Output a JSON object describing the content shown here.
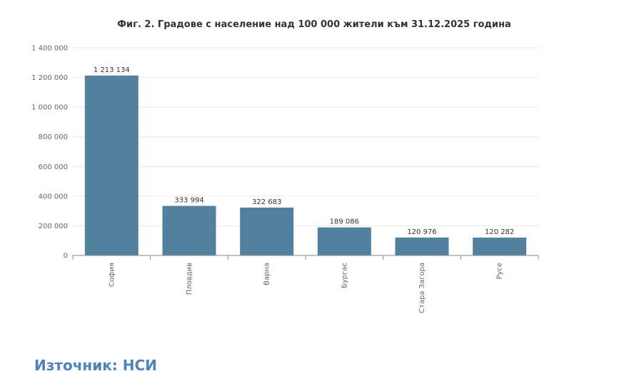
{
  "chart_data": {
    "type": "bar",
    "title": "Фиг. 2. Градове с население над 100 000 жители към 31.12.2025 година",
    "categories": [
      "София",
      "Пловдив",
      "Варна",
      "Бургас",
      "Стара Загора",
      "Русе"
    ],
    "values": [
      1213134,
      333994,
      322683,
      189086,
      120976,
      120282
    ],
    "value_labels": [
      "1 213 134",
      "333 994",
      "322 683",
      "189 086",
      "120 976",
      "120 282"
    ],
    "ylim": [
      0,
      1400000
    ],
    "yticks": [
      0,
      200000,
      400000,
      600000,
      800000,
      1000000,
      1200000,
      1400000
    ],
    "ytick_labels": [
      "0",
      "200 000",
      "400 000",
      "600 000",
      "800 000",
      "1 000 000",
      "1 200 000",
      "1 400 000"
    ],
    "xlabel": "",
    "ylabel": "",
    "grid": true,
    "bar_color": "#52809f"
  },
  "source": {
    "label": "Източник: НСИ",
    "color": "#4f81bd"
  }
}
